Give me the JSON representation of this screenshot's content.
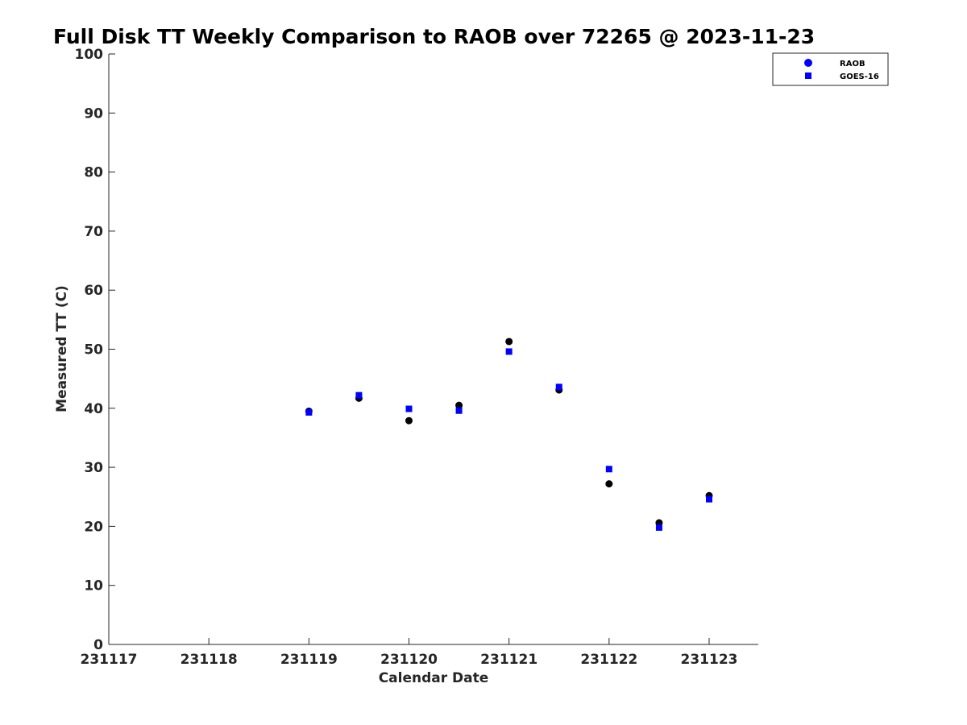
{
  "chart_data": {
    "type": "scatter",
    "title": "Full Disk TT Weekly Comparison to RAOB over 72265 @ 2023-11-23",
    "xlabel": "Calendar Date",
    "ylabel": "Measured TT (C)",
    "xlim": [
      231117,
      231123.5
    ],
    "ylim": [
      0,
      100
    ],
    "x_ticks": [
      {
        "value": 231117,
        "label": "231117"
      },
      {
        "value": 231118,
        "label": "231118"
      },
      {
        "value": 231119,
        "label": "231119"
      },
      {
        "value": 231120,
        "label": "231120"
      },
      {
        "value": 231121,
        "label": "231121"
      },
      {
        "value": 231122,
        "label": "231122"
      },
      {
        "value": 231123,
        "label": "231123"
      }
    ],
    "y_ticks": [
      {
        "value": 0,
        "label": "0"
      },
      {
        "value": 10,
        "label": "10"
      },
      {
        "value": 20,
        "label": "20"
      },
      {
        "value": 30,
        "label": "30"
      },
      {
        "value": 40,
        "label": "40"
      },
      {
        "value": 50,
        "label": "50"
      },
      {
        "value": 60,
        "label": "60"
      },
      {
        "value": 70,
        "label": "70"
      },
      {
        "value": 80,
        "label": "80"
      },
      {
        "value": 90,
        "label": "90"
      },
      {
        "value": 100,
        "label": "100"
      }
    ],
    "grid": false,
    "legend": {
      "position": "top-right"
    },
    "series": [
      {
        "name": "RAOB",
        "marker": "circle",
        "color": "#000000",
        "legend_color": "#0000ff",
        "points": [
          {
            "x": 231119.0,
            "y": 39.5
          },
          {
            "x": 231119.5,
            "y": 41.7
          },
          {
            "x": 231120.0,
            "y": 37.9
          },
          {
            "x": 231120.5,
            "y": 40.5
          },
          {
            "x": 231121.0,
            "y": 51.3
          },
          {
            "x": 231121.5,
            "y": 43.1
          },
          {
            "x": 231122.0,
            "y": 27.2
          },
          {
            "x": 231122.5,
            "y": 20.6
          },
          {
            "x": 231123.0,
            "y": 25.2
          }
        ]
      },
      {
        "name": "GOES-16",
        "marker": "square",
        "color": "#0000ff",
        "legend_color": "#0000ff",
        "points": [
          {
            "x": 231119.0,
            "y": 39.3
          },
          {
            "x": 231119.5,
            "y": 42.2
          },
          {
            "x": 231120.0,
            "y": 39.9
          },
          {
            "x": 231120.5,
            "y": 39.6
          },
          {
            "x": 231121.0,
            "y": 49.6
          },
          {
            "x": 231121.5,
            "y": 43.6
          },
          {
            "x": 231122.0,
            "y": 29.7
          },
          {
            "x": 231122.5,
            "y": 19.8
          },
          {
            "x": 231123.0,
            "y": 24.6
          }
        ]
      }
    ]
  }
}
